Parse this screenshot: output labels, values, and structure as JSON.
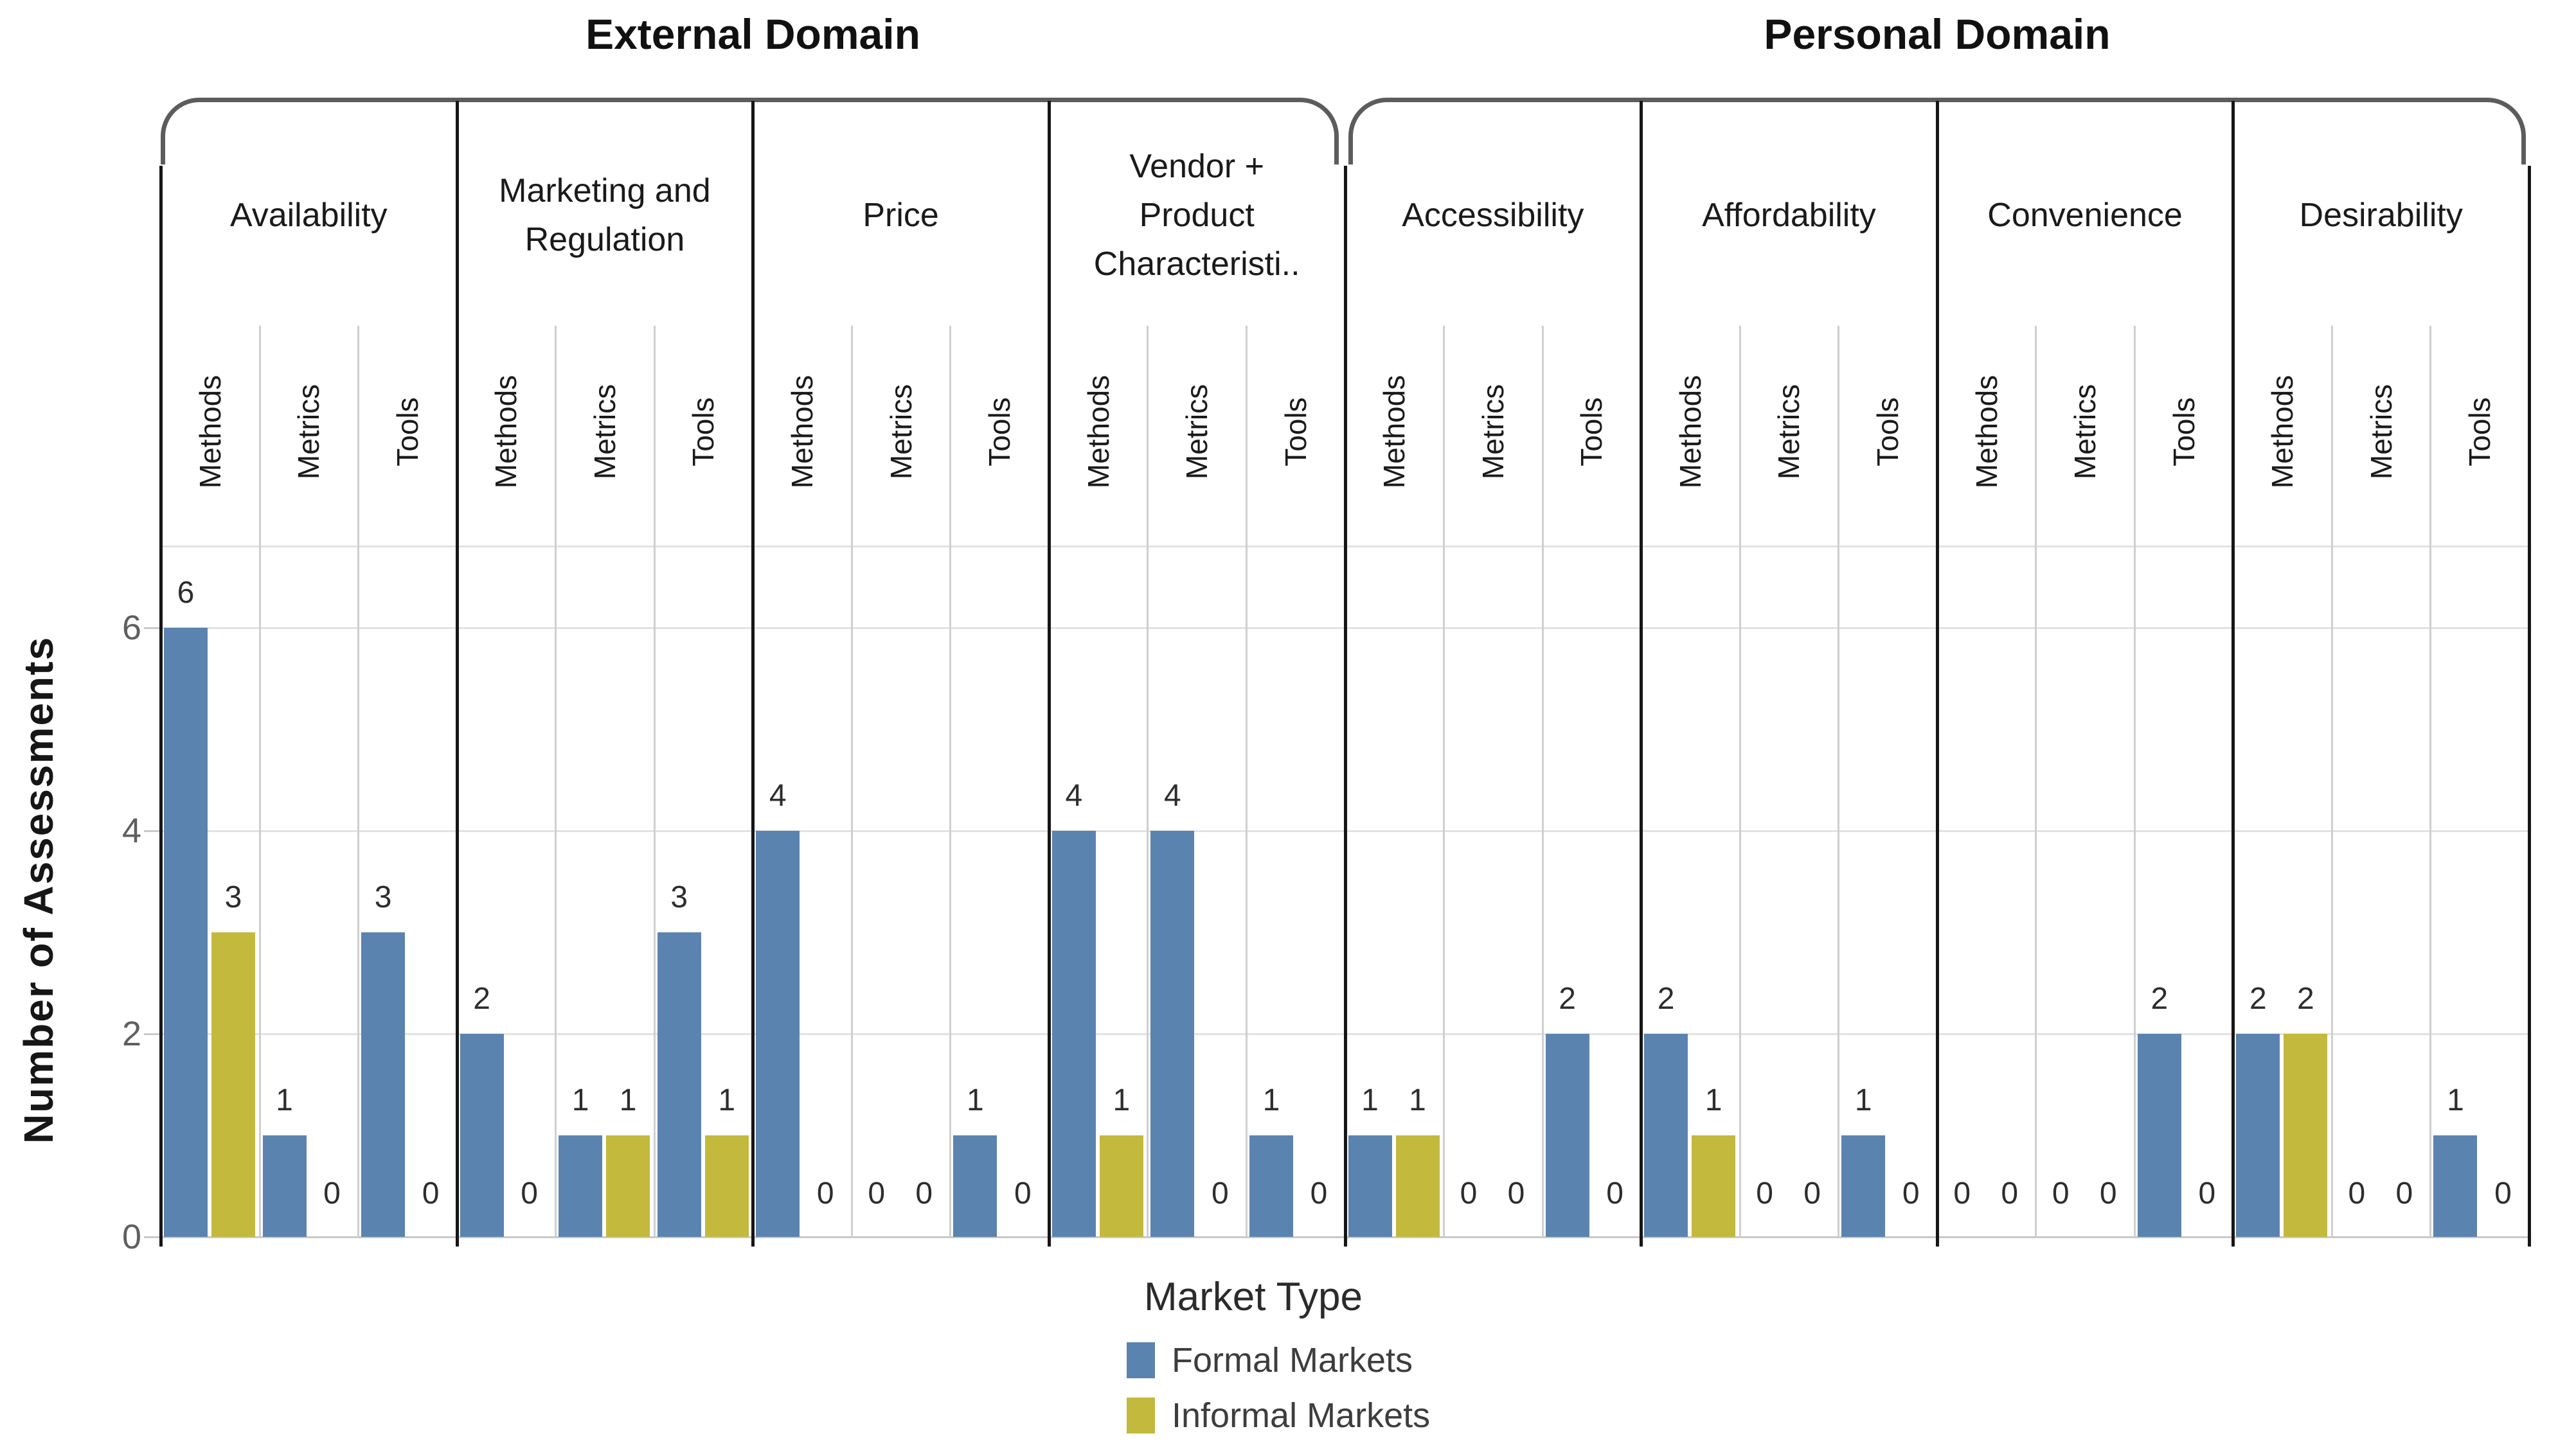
{
  "chart_data": {
    "type": "bar",
    "ylabel": "Number of Assessments",
    "yticks": [
      0,
      2,
      4,
      6
    ],
    "ylim": [
      0,
      6.8
    ],
    "grid": "horizontal",
    "legend": {
      "title": "Market Type",
      "position": "bottom-center",
      "entries": [
        {
          "label": "Formal Markets",
          "color": "#5b83af"
        },
        {
          "label": "Informal Markets",
          "color": "#c3b93d"
        }
      ]
    },
    "group_labels": [
      "Methods",
      "Metrics",
      "Tools"
    ],
    "domains": [
      {
        "label": "External Domain",
        "categories": [
          {
            "label": "Availability",
            "groups": [
              {
                "label": "Methods",
                "formal": 6,
                "informal": 3
              },
              {
                "label": "Metrics",
                "formal": 1,
                "informal": 0
              },
              {
                "label": "Tools",
                "formal": 3,
                "informal": 0
              }
            ]
          },
          {
            "label": "Marketing and\nRegulation",
            "groups": [
              {
                "label": "Methods",
                "formal": 2,
                "informal": 0
              },
              {
                "label": "Metrics",
                "formal": 1,
                "informal": 1
              },
              {
                "label": "Tools",
                "formal": 3,
                "informal": 1
              }
            ]
          },
          {
            "label": "Price",
            "groups": [
              {
                "label": "Methods",
                "formal": 4,
                "informal": 0
              },
              {
                "label": "Metrics",
                "formal": 0,
                "informal": 0
              },
              {
                "label": "Tools",
                "formal": 1,
                "informal": 0
              }
            ]
          },
          {
            "label": "Vendor +\nProduct\nCharacteristi..",
            "groups": [
              {
                "label": "Methods",
                "formal": 4,
                "informal": 1
              },
              {
                "label": "Metrics",
                "formal": 4,
                "informal": 0
              },
              {
                "label": "Tools",
                "formal": 1,
                "informal": 0
              }
            ]
          }
        ]
      },
      {
        "label": "Personal Domain",
        "categories": [
          {
            "label": "Accessibility",
            "groups": [
              {
                "label": "Methods",
                "formal": 1,
                "informal": 1
              },
              {
                "label": "Metrics",
                "formal": 0,
                "informal": 0
              },
              {
                "label": "Tools",
                "formal": 2,
                "informal": 0
              }
            ]
          },
          {
            "label": "Affordability",
            "groups": [
              {
                "label": "Methods",
                "formal": 2,
                "informal": 1
              },
              {
                "label": "Metrics",
                "formal": 0,
                "informal": 0
              },
              {
                "label": "Tools",
                "formal": 1,
                "informal": 0
              }
            ]
          },
          {
            "label": "Convenience",
            "groups": [
              {
                "label": "Methods",
                "formal": 0,
                "informal": 0
              },
              {
                "label": "Metrics",
                "formal": 0,
                "informal": 0
              },
              {
                "label": "Tools",
                "formal": 2,
                "informal": 0
              }
            ]
          },
          {
            "label": "Desirability",
            "groups": [
              {
                "label": "Methods",
                "formal": 2,
                "informal": 2
              },
              {
                "label": "Metrics",
                "formal": 0,
                "informal": 0
              },
              {
                "label": "Tools",
                "formal": 1,
                "informal": 0
              }
            ]
          }
        ]
      }
    ],
    "series": [
      {
        "name": "Formal Markets",
        "order": "domains then categories then groups (Methods, Metrics, Tools)",
        "values": [
          6,
          1,
          3,
          2,
          1,
          3,
          4,
          0,
          1,
          4,
          4,
          1,
          1,
          0,
          2,
          2,
          0,
          1,
          0,
          0,
          2,
          2,
          0,
          1
        ]
      },
      {
        "name": "Informal Markets",
        "order": "domains then categories then groups (Methods, Metrics, Tools)",
        "values": [
          3,
          0,
          0,
          0,
          1,
          1,
          0,
          0,
          0,
          1,
          0,
          0,
          1,
          0,
          0,
          1,
          0,
          0,
          0,
          0,
          0,
          2,
          0,
          0
        ]
      }
    ]
  }
}
